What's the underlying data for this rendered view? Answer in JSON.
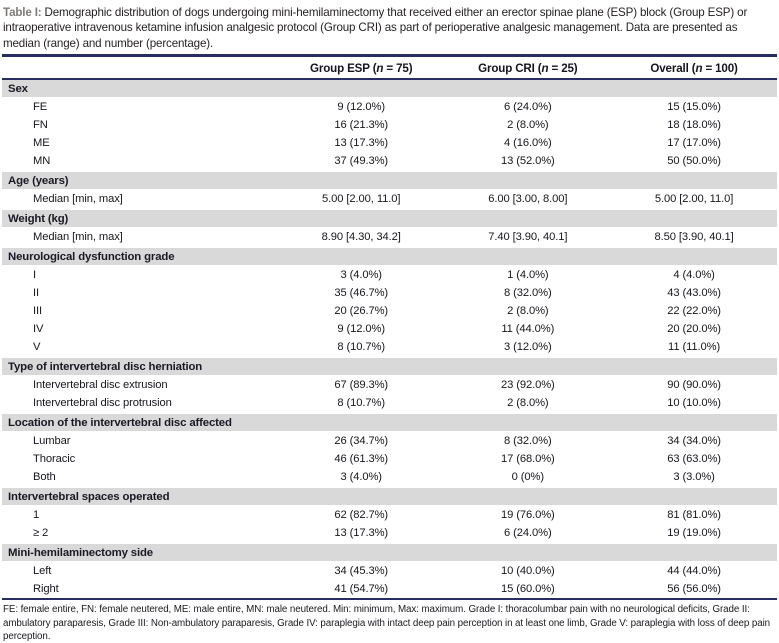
{
  "caption": {
    "label": "Table I:",
    "text": "Demographic distribution of dogs undergoing mini-hemilaminectomy that received either an erector spinae plane (ESP) block (Group ESP) or intraoperative intravenous ketamine infusion analgesic protocol (Group CRI) as part of perioperative analgesic management. Data are presented as median (range) and number (percentage)."
  },
  "header": {
    "cols": [
      {
        "pre": "Group ESP (",
        "n": "n",
        "post": " = 75)"
      },
      {
        "pre": "Group CRI (",
        "n": "n",
        "post": " = 25)"
      },
      {
        "pre": "Overall (",
        "n": "n",
        "post": " = 100)"
      }
    ]
  },
  "sections": [
    {
      "title": "Sex",
      "rows": [
        {
          "label": "FE",
          "esp": "9 (12.0%)",
          "cri": "6 (24.0%)",
          "overall": "15 (15.0%)"
        },
        {
          "label": "FN",
          "esp": "16 (21.3%)",
          "cri": "2 (8.0%)",
          "overall": "18 (18.0%)"
        },
        {
          "label": "ME",
          "esp": "13 (17.3%)",
          "cri": "4 (16.0%)",
          "overall": "17 (17.0%)"
        },
        {
          "label": "MN",
          "esp": "37 (49.3%)",
          "cri": "13 (52.0%)",
          "overall": "50 (50.0%)"
        }
      ]
    },
    {
      "title": "Age (years)",
      "rows": [
        {
          "label": "Median [min, max]",
          "esp": "5.00 [2.00, 11.0]",
          "cri": "6.00 [3.00, 8.00]",
          "overall": "5.00 [2.00, 11.0]"
        }
      ]
    },
    {
      "title": "Weight (kg)",
      "rows": [
        {
          "label": "Median [min, max]",
          "esp": "8.90 [4.30, 34.2]",
          "cri": "7.40 [3.90, 40.1]",
          "overall": "8.50 [3.90, 40.1]"
        }
      ]
    },
    {
      "title": "Neurological dysfunction grade",
      "rows": [
        {
          "label": "I",
          "esp": "3 (4.0%)",
          "cri": "1 (4.0%)",
          "overall": "4 (4.0%)"
        },
        {
          "label": "II",
          "esp": "35 (46.7%)",
          "cri": "8 (32.0%)",
          "overall": "43 (43.0%)"
        },
        {
          "label": "III",
          "esp": "20 (26.7%)",
          "cri": "2 (8.0%)",
          "overall": "22 (22.0%)"
        },
        {
          "label": "IV",
          "esp": "9 (12.0%)",
          "cri": "11 (44.0%)",
          "overall": "20 (20.0%)"
        },
        {
          "label": "V",
          "esp": "8 (10.7%)",
          "cri": "3 (12.0%)",
          "overall": "11 (11.0%)"
        }
      ]
    },
    {
      "title": "Type of intervertebral disc herniation",
      "rows": [
        {
          "label": "Intervertebral disc extrusion",
          "esp": "67 (89.3%)",
          "cri": "23 (92.0%)",
          "overall": "90 (90.0%)"
        },
        {
          "label": "Intervertebral disc protrusion",
          "esp": "8 (10.7%)",
          "cri": "2 (8.0%)",
          "overall": "10 (10.0%)"
        }
      ]
    },
    {
      "title": "Location of the intervertebral disc affected",
      "rows": [
        {
          "label": "Lumbar",
          "esp": "26 (34.7%)",
          "cri": "8 (32.0%)",
          "overall": "34 (34.0%)"
        },
        {
          "label": "Thoracic",
          "esp": "46 (61.3%)",
          "cri": "17 (68.0%)",
          "overall": "63 (63.0%)"
        },
        {
          "label": "Both",
          "esp": "3 (4.0%)",
          "cri": "0 (0%)",
          "overall": "3 (3.0%)"
        }
      ]
    },
    {
      "title": "Intervertebral spaces operated",
      "rows": [
        {
          "label": "1",
          "esp": "62 (82.7%)",
          "cri": "19 (76.0%)",
          "overall": "81 (81.0%)"
        },
        {
          "label": "≥ 2",
          "esp": "13 (17.3%)",
          "cri": "6 (24.0%)",
          "overall": "19 (19.0%)"
        }
      ]
    },
    {
      "title": "Mini-hemilaminectomy side",
      "rows": [
        {
          "label": "Left",
          "esp": "34 (45.3%)",
          "cri": "10 (40.0%)",
          "overall": "44 (44.0%)"
        },
        {
          "label": "Right",
          "esp": "41 (54.7%)",
          "cri": "15 (60.0%)",
          "overall": "56 (56.0%)"
        }
      ]
    }
  ],
  "footnote": "FE: female entire, FN: female neutered, ME: male entire, MN: male neutered. Min: minimum, Max: maximum. Grade I: thoracolumbar pain with no neurological deficits, Grade II: ambulatory paraparesis, Grade III: Non-ambulatory paraparesis, Grade IV: paraplegia with intact deep pain perception in at least one limb, Grade V: paraplegia with loss of deep pain perception.",
  "colors": {
    "rule_navy": "#272c63",
    "band_gray": "#d9d9d9",
    "caption_label_gray": "#7e7a78"
  }
}
